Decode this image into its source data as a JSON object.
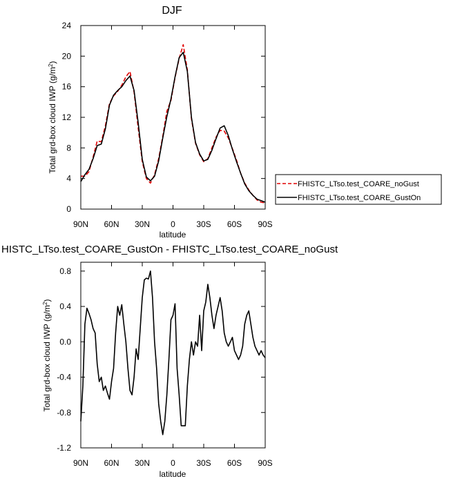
{
  "chart_data": [
    {
      "type": "line",
      "title": "DJF",
      "xlabel": "latitude",
      "ylabel_main": "Total grd-box cloud IWP (g/m",
      "ylabel_sup": "2",
      "ylabel_end": ")",
      "xlim": [
        90,
        -90
      ],
      "ylim": [
        0,
        24
      ],
      "x_ticks": [
        {
          "v": 90,
          "label": "90N"
        },
        {
          "v": 60,
          "label": "60N"
        },
        {
          "v": 30,
          "label": "30N"
        },
        {
          "v": 0,
          "label": "0"
        },
        {
          "v": -30,
          "label": "30S"
        },
        {
          "v": -60,
          "label": "60S"
        },
        {
          "v": -90,
          "label": "90S"
        }
      ],
      "y_ticks": [
        {
          "v": 0,
          "label": "0"
        },
        {
          "v": 4,
          "label": "4"
        },
        {
          "v": 8,
          "label": "8"
        },
        {
          "v": 12,
          "label": "12"
        },
        {
          "v": 16,
          "label": "16"
        },
        {
          "v": 20,
          "label": "20"
        },
        {
          "v": 24,
          "label": "24"
        }
      ],
      "grid": false,
      "legend_position": "right",
      "series": [
        {
          "name": "FHISTC_LTso.test_COARE_noGust",
          "color": "#e00000",
          "dash": true,
          "x": [
            90,
            86,
            82,
            78,
            74,
            70,
            66,
            62,
            58,
            54,
            50,
            46,
            42,
            38,
            34,
            30,
            26,
            22,
            18,
            14,
            10,
            6,
            2,
            -2,
            -6,
            -10,
            -14,
            -18,
            -22,
            -26,
            -30,
            -34,
            -38,
            -42,
            -46,
            -50,
            -54,
            -58,
            -62,
            -66,
            -70,
            -74,
            -78,
            -82,
            -86,
            -90
          ],
          "y": [
            4.3,
            4.3,
            4.9,
            6.8,
            8.9,
            8.8,
            10.9,
            13.8,
            14.8,
            15.4,
            16.2,
            17.3,
            18.0,
            15.3,
            10.6,
            6.2,
            4.0,
            3.4,
            4.5,
            6.6,
            9.5,
            12.8,
            14.2,
            17.2,
            19.7,
            21.5,
            18.2,
            11.8,
            8.6,
            7.1,
            6.2,
            6.6,
            8.0,
            9.4,
            10.3,
            10.2,
            9.3,
            7.9,
            6.4,
            4.7,
            3.4,
            2.5,
            1.8,
            1.2,
            0.9,
            0.8
          ]
        },
        {
          "name": "FHISTC_LTso.test_COARE_GustOn",
          "color": "#000000",
          "dash": false,
          "x": [
            90,
            86,
            82,
            78,
            74,
            70,
            66,
            62,
            58,
            54,
            50,
            46,
            42,
            38,
            34,
            30,
            26,
            22,
            18,
            14,
            10,
            6,
            2,
            -2,
            -6,
            -10,
            -14,
            -18,
            -22,
            -26,
            -30,
            -34,
            -38,
            -42,
            -46,
            -50,
            -54,
            -58,
            -62,
            -66,
            -70,
            -74,
            -78,
            -82,
            -86,
            -90
          ],
          "y": [
            3.6,
            4.5,
            5.2,
            6.6,
            8.3,
            8.5,
            10.5,
            13.6,
            14.9,
            15.5,
            16.0,
            16.8,
            17.4,
            15.5,
            11.3,
            6.5,
            4.2,
            3.7,
            4.3,
            6.3,
            9.3,
            12.1,
            14.4,
            17.3,
            19.8,
            20.5,
            18.0,
            12.0,
            8.7,
            7.2,
            6.3,
            6.5,
            7.7,
            9.2,
            10.6,
            10.9,
            9.6,
            7.8,
            6.2,
            4.7,
            3.3,
            2.4,
            1.8,
            1.3,
            1.1,
            0.9
          ]
        }
      ]
    },
    {
      "type": "line",
      "title": "HISTC_LTso.test_COARE_GustOn - FHISTC_LTso.test_COARE_noGust",
      "xlabel": "latitude",
      "ylabel_main": "Total grd-box cloud IWP (g/m",
      "ylabel_sup": "2",
      "ylabel_end": ")",
      "xlim": [
        90,
        -90
      ],
      "ylim": [
        -1.2,
        0.9
      ],
      "x_ticks": [
        {
          "v": 90,
          "label": "90N"
        },
        {
          "v": 60,
          "label": "60N"
        },
        {
          "v": 30,
          "label": "30N"
        },
        {
          "v": 0,
          "label": "0"
        },
        {
          "v": -30,
          "label": "30S"
        },
        {
          "v": -60,
          "label": "60S"
        },
        {
          "v": -90,
          "label": "90S"
        }
      ],
      "y_ticks": [
        {
          "v": -1.2,
          "label": "-1.2"
        },
        {
          "v": -0.8,
          "label": "-0.8"
        },
        {
          "v": -0.4,
          "label": "-0.4"
        },
        {
          "v": 0.0,
          "label": "0.0"
        },
        {
          "v": 0.4,
          "label": "0.4"
        },
        {
          "v": 0.8,
          "label": "0.8"
        }
      ],
      "grid": false,
      "series": [
        {
          "color": "#000000",
          "dash": false,
          "x": [
            90,
            88,
            86,
            84,
            82,
            80,
            78,
            76,
            74,
            72,
            70,
            68,
            66,
            64,
            62,
            60,
            58,
            56,
            54,
            52,
            50,
            48,
            46,
            44,
            42,
            40,
            38,
            36,
            34,
            32,
            30,
            28,
            26,
            24,
            22,
            20,
            18,
            16,
            14,
            12,
            10,
            8,
            6,
            4,
            2,
            0,
            -2,
            -4,
            -6,
            -8,
            -10,
            -12,
            -14,
            -16,
            -18,
            -20,
            -22,
            -24,
            -26,
            -28,
            -30,
            -32,
            -34,
            -36,
            -38,
            -40,
            -42,
            -44,
            -46,
            -48,
            -50,
            -52,
            -54,
            -56,
            -58,
            -60,
            -62,
            -64,
            -66,
            -68,
            -70,
            -72,
            -74,
            -76,
            -78,
            -80,
            -82,
            -84,
            -86,
            -88,
            -90
          ],
          "y": [
            -0.9,
            -0.5,
            0.2,
            0.38,
            0.32,
            0.25,
            0.15,
            0.1,
            -0.25,
            -0.45,
            -0.4,
            -0.55,
            -0.5,
            -0.58,
            -0.65,
            -0.45,
            -0.3,
            0.1,
            0.4,
            0.3,
            0.42,
            0.2,
            0.0,
            -0.3,
            -0.55,
            -0.6,
            -0.4,
            -0.08,
            -0.2,
            0.15,
            0.5,
            0.7,
            0.72,
            0.71,
            0.8,
            0.5,
            0.0,
            -0.3,
            -0.7,
            -0.9,
            -1.05,
            -0.9,
            -0.6,
            -0.2,
            0.25,
            0.3,
            0.43,
            -0.3,
            -0.6,
            -0.95,
            -0.95,
            -0.95,
            -0.5,
            -0.2,
            0.0,
            -0.15,
            0.0,
            -0.05,
            0.3,
            -0.1,
            0.35,
            0.45,
            0.65,
            0.5,
            0.3,
            0.15,
            0.3,
            0.4,
            0.5,
            0.35,
            0.1,
            0.0,
            -0.05,
            0.0,
            0.05,
            -0.1,
            -0.15,
            -0.2,
            -0.15,
            -0.05,
            0.2,
            0.3,
            0.35,
            0.2,
            0.05,
            -0.05,
            -0.1,
            -0.15,
            -0.1,
            -0.15,
            -0.18
          ]
        }
      ]
    }
  ]
}
